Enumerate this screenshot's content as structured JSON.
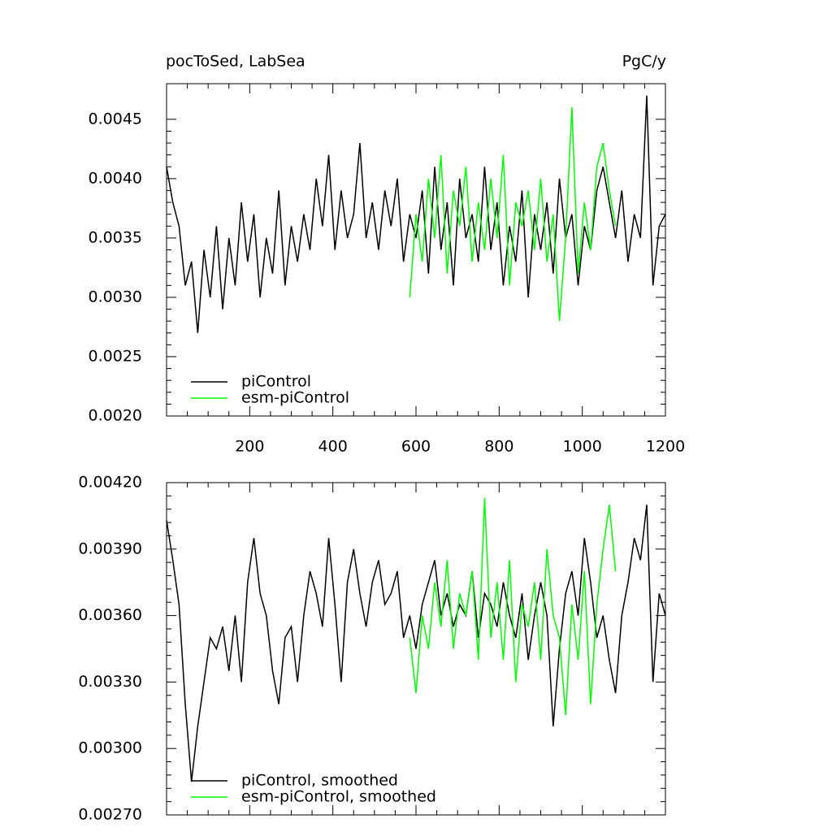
{
  "chart_data": [
    {
      "type": "line",
      "title": "pocToSed, LabSea",
      "units": "PgC/y",
      "xlim": [
        0,
        1200
      ],
      "xticks": [
        200,
        400,
        600,
        800,
        1000,
        1200
      ],
      "show_xtick_labels": true,
      "ylim": [
        0.002,
        0.0048
      ],
      "yticks": [
        {
          "value": 0.002,
          "label": "0.0020"
        },
        {
          "value": 0.0025,
          "label": "0.0025"
        },
        {
          "value": 0.003,
          "label": "0.0030"
        },
        {
          "value": 0.0035,
          "label": "0.0035"
        },
        {
          "value": 0.004,
          "label": "0.0040"
        },
        {
          "value": 0.0045,
          "label": "0.0045"
        }
      ],
      "legend": "lower left",
      "series": [
        {
          "name": "piControl",
          "color": "#000000",
          "x": [
            0,
            15,
            30,
            45,
            60,
            75,
            90,
            105,
            120,
            135,
            150,
            165,
            180,
            195,
            210,
            225,
            240,
            255,
            270,
            285,
            300,
            315,
            330,
            345,
            360,
            375,
            390,
            405,
            420,
            435,
            450,
            465,
            480,
            495,
            510,
            525,
            540,
            555,
            570,
            585,
            600,
            615,
            630,
            645,
            660,
            675,
            690,
            705,
            720,
            735,
            750,
            765,
            780,
            795,
            810,
            825,
            840,
            855,
            870,
            885,
            900,
            915,
            930,
            945,
            960,
            975,
            990,
            1005,
            1020,
            1035,
            1050,
            1065,
            1080,
            1095,
            1110,
            1125,
            1140,
            1155,
            1170,
            1185,
            1200
          ],
          "values": [
            0.0041,
            0.0038,
            0.0036,
            0.0031,
            0.0033,
            0.0027,
            0.0034,
            0.003,
            0.0036,
            0.0029,
            0.0035,
            0.0031,
            0.0038,
            0.0033,
            0.0037,
            0.003,
            0.0035,
            0.0032,
            0.0039,
            0.0031,
            0.0036,
            0.0033,
            0.0037,
            0.0034,
            0.004,
            0.0036,
            0.0042,
            0.0034,
            0.0039,
            0.0035,
            0.0037,
            0.0043,
            0.0035,
            0.0038,
            0.0034,
            0.0039,
            0.0036,
            0.004,
            0.0033,
            0.0037,
            0.0035,
            0.0039,
            0.0032,
            0.0041,
            0.0034,
            0.0038,
            0.0031,
            0.004,
            0.0035,
            0.0037,
            0.0033,
            0.0041,
            0.0034,
            0.0038,
            0.0031,
            0.0036,
            0.0033,
            0.0039,
            0.003,
            0.0037,
            0.0034,
            0.0038,
            0.0032,
            0.004,
            0.0035,
            0.0037,
            0.0031,
            0.0036,
            0.0034,
            0.0039,
            0.0041,
            0.0038,
            0.0035,
            0.0039,
            0.0033,
            0.0037,
            0.0035,
            0.0047,
            0.0031,
            0.0036,
            0.0037
          ]
        },
        {
          "name": "esm-piControl",
          "color": "#00ff00",
          "x": [
            585,
            600,
            615,
            630,
            645,
            660,
            675,
            690,
            705,
            720,
            735,
            750,
            765,
            780,
            795,
            810,
            825,
            840,
            855,
            870,
            885,
            900,
            915,
            930,
            945,
            960,
            975,
            990,
            1005,
            1020,
            1035,
            1050,
            1065,
            1080
          ],
          "values": [
            0.003,
            0.0037,
            0.0033,
            0.004,
            0.0035,
            0.0042,
            0.0032,
            0.0039,
            0.0036,
            0.0041,
            0.0033,
            0.0038,
            0.0034,
            0.004,
            0.0035,
            0.0042,
            0.0031,
            0.0038,
            0.0036,
            0.0039,
            0.0034,
            0.004,
            0.0033,
            0.0037,
            0.0028,
            0.0035,
            0.0046,
            0.0032,
            0.0038,
            0.0034,
            0.0041,
            0.0043,
            0.0039,
            0.0036
          ]
        }
      ]
    },
    {
      "type": "line",
      "xlim": [
        0,
        1200
      ],
      "xticks": [
        200,
        400,
        600,
        800,
        1000,
        1200
      ],
      "show_xtick_labels": false,
      "ylim": [
        0.0027,
        0.0042
      ],
      "yticks": [
        {
          "value": 0.0027,
          "label": "0.00270"
        },
        {
          "value": 0.003,
          "label": "0.00300"
        },
        {
          "value": 0.0033,
          "label": "0.00330"
        },
        {
          "value": 0.0036,
          "label": "0.00360"
        },
        {
          "value": 0.0039,
          "label": "0.00390"
        },
        {
          "value": 0.0042,
          "label": "0.00420"
        }
      ],
      "legend": "lower left",
      "series": [
        {
          "name": "piControl, smoothed",
          "color": "#000000",
          "x": [
            0,
            15,
            30,
            45,
            60,
            75,
            90,
            105,
            120,
            135,
            150,
            165,
            180,
            195,
            210,
            225,
            240,
            255,
            270,
            285,
            300,
            315,
            330,
            345,
            360,
            375,
            390,
            405,
            420,
            435,
            450,
            465,
            480,
            495,
            510,
            525,
            540,
            555,
            570,
            585,
            600,
            615,
            630,
            645,
            660,
            675,
            690,
            705,
            720,
            735,
            750,
            765,
            780,
            795,
            810,
            825,
            840,
            855,
            870,
            885,
            900,
            915,
            930,
            945,
            960,
            975,
            990,
            1005,
            1020,
            1035,
            1050,
            1065,
            1080,
            1095,
            1110,
            1125,
            1140,
            1155,
            1170,
            1185,
            1200
          ],
          "values": [
            0.00403,
            0.00385,
            0.00365,
            0.0032,
            0.00285,
            0.0031,
            0.0033,
            0.0035,
            0.00345,
            0.00355,
            0.00335,
            0.0036,
            0.0033,
            0.00375,
            0.00395,
            0.0037,
            0.0036,
            0.00335,
            0.0032,
            0.0035,
            0.00355,
            0.0033,
            0.0036,
            0.0038,
            0.0037,
            0.00355,
            0.00395,
            0.00365,
            0.0033,
            0.00375,
            0.0039,
            0.0037,
            0.00355,
            0.00375,
            0.00385,
            0.00365,
            0.0037,
            0.0038,
            0.0035,
            0.0036,
            0.00345,
            0.00365,
            0.00375,
            0.00385,
            0.0036,
            0.0037,
            0.00355,
            0.00365,
            0.0036,
            0.0038,
            0.0035,
            0.0037,
            0.00365,
            0.00355,
            0.00375,
            0.0036,
            0.0035,
            0.0037,
            0.0034,
            0.0036,
            0.00375,
            0.0036,
            0.0031,
            0.00345,
            0.0037,
            0.0038,
            0.0036,
            0.00395,
            0.00375,
            0.0035,
            0.0036,
            0.0034,
            0.00325,
            0.0036,
            0.00375,
            0.00395,
            0.00385,
            0.0041,
            0.0033,
            0.0037,
            0.0036
          ]
        },
        {
          "name": "esm-piControl, smoothed",
          "color": "#00ff00",
          "x": [
            585,
            600,
            615,
            630,
            645,
            660,
            675,
            690,
            705,
            720,
            735,
            750,
            765,
            780,
            795,
            810,
            825,
            840,
            855,
            870,
            885,
            900,
            915,
            930,
            945,
            960,
            975,
            990,
            1005,
            1020,
            1035,
            1050,
            1065,
            1080
          ],
          "values": [
            0.0035,
            0.00325,
            0.0036,
            0.00345,
            0.00375,
            0.00355,
            0.00385,
            0.00345,
            0.0037,
            0.0036,
            0.0038,
            0.0034,
            0.00413,
            0.0035,
            0.00375,
            0.0034,
            0.00385,
            0.0033,
            0.00365,
            0.00355,
            0.00375,
            0.0034,
            0.0039,
            0.0036,
            0.0035,
            0.00315,
            0.00365,
            0.0034,
            0.0038,
            0.0032,
            0.00365,
            0.0039,
            0.0041,
            0.0038
          ]
        }
      ]
    }
  ]
}
